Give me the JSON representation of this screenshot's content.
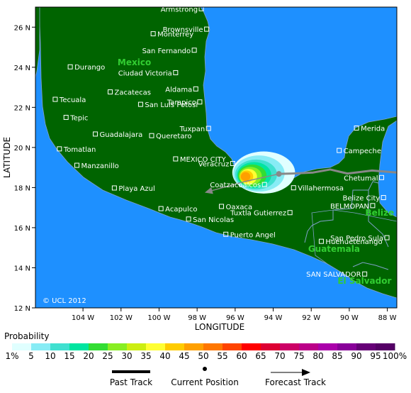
{
  "colors": {
    "ocean": "#1e90ff",
    "land": "#006400",
    "border": "#7fa0c8",
    "frame": "#000000",
    "track": "#888888",
    "country_label": "#32cd32",
    "city_marker": "#ffffff"
  },
  "map": {
    "lon_range": [
      -106.5,
      -87.5
    ],
    "lat_range": [
      12,
      27
    ],
    "x_label": "LONGITUDE",
    "y_label": "LATITUDE",
    "credit": "© UCL 2012",
    "lon_ticks": [
      {
        "value": -104,
        "label": "104 W"
      },
      {
        "value": -102,
        "label": "102 W"
      },
      {
        "value": -100,
        "label": "100 W"
      },
      {
        "value": -98,
        "label": "98 W"
      },
      {
        "value": -96,
        "label": "96 W"
      },
      {
        "value": -94,
        "label": "94 W"
      },
      {
        "value": -92,
        "label": "92 W"
      },
      {
        "value": -90,
        "label": "90 W"
      },
      {
        "value": -88,
        "label": "88 W"
      }
    ],
    "lat_ticks": [
      {
        "value": 26,
        "label": "26 N"
      },
      {
        "value": 24,
        "label": "24 N"
      },
      {
        "value": 22,
        "label": "22 N"
      },
      {
        "value": 20,
        "label": "20 N"
      },
      {
        "value": 18,
        "label": "18 N"
      },
      {
        "value": 16,
        "label": "16 N"
      },
      {
        "value": 14,
        "label": "14 N"
      },
      {
        "value": 12,
        "label": "12 N"
      }
    ],
    "countries": [
      {
        "name": "Mexico",
        "lon": -101.3,
        "lat": 24.1
      },
      {
        "name": "Guatemala",
        "lon": -90.8,
        "lat": 14.8
      },
      {
        "name": "Belize",
        "lon": -88.4,
        "lat": 16.6
      },
      {
        "name": "El Salvador",
        "lon": -89.2,
        "lat": 13.2
      }
    ],
    "cities": [
      {
        "name": "Armstrong",
        "lon": -97.78,
        "lat": 26.92,
        "label_side": "left"
      },
      {
        "name": "Brownsville",
        "lon": -97.5,
        "lat": 25.9,
        "label_side": "left"
      },
      {
        "name": "Monterrey",
        "lon": -100.31,
        "lat": 25.67,
        "label_side": "right"
      },
      {
        "name": "San Fernando",
        "lon": -98.15,
        "lat": 24.85,
        "label_side": "left"
      },
      {
        "name": "Durango",
        "lon": -104.67,
        "lat": 24.02,
        "label_side": "right"
      },
      {
        "name": "Ciudad Victoria",
        "lon": -99.13,
        "lat": 23.73,
        "label_side": "left"
      },
      {
        "name": "Zacatecas",
        "lon": -102.57,
        "lat": 22.77,
        "label_side": "right"
      },
      {
        "name": "Aldama",
        "lon": -98.07,
        "lat": 22.92,
        "label_side": "left"
      },
      {
        "name": "Tecuala",
        "lon": -105.46,
        "lat": 22.4,
        "label_side": "right"
      },
      {
        "name": "Tampico",
        "lon": -97.86,
        "lat": 22.27,
        "label_side": "left"
      },
      {
        "name": "San Luis Potosi",
        "lon": -100.97,
        "lat": 22.15,
        "label_side": "right"
      },
      {
        "name": "Tepic",
        "lon": -104.89,
        "lat": 21.5,
        "label_side": "right"
      },
      {
        "name": "Guadalajara",
        "lon": -103.35,
        "lat": 20.67,
        "label_side": "right"
      },
      {
        "name": "Queretaro",
        "lon": -100.39,
        "lat": 20.59,
        "label_side": "right"
      },
      {
        "name": "Tuxpan",
        "lon": -97.4,
        "lat": 20.95,
        "label_side": "left"
      },
      {
        "name": "Tomatlan",
        "lon": -105.24,
        "lat": 19.93,
        "label_side": "right"
      },
      {
        "name": "MEXICO CITY",
        "lon": -99.13,
        "lat": 19.43,
        "label_side": "right"
      },
      {
        "name": "Manzanillo",
        "lon": -104.32,
        "lat": 19.11,
        "label_side": "right"
      },
      {
        "name": "Veracruz",
        "lon": -96.13,
        "lat": 19.2,
        "label_side": "left"
      },
      {
        "name": "Coatzacoalcos",
        "lon": -94.46,
        "lat": 18.15,
        "label_side": "left"
      },
      {
        "name": "Villahermosa",
        "lon": -92.93,
        "lat": 17.99,
        "label_side": "right"
      },
      {
        "name": "Playa Azul",
        "lon": -102.35,
        "lat": 17.98,
        "label_side": "right"
      },
      {
        "name": "Acapulco",
        "lon": -99.9,
        "lat": 16.95,
        "label_side": "right"
      },
      {
        "name": "Oaxaca",
        "lon": -96.72,
        "lat": 17.06,
        "label_side": "right"
      },
      {
        "name": "Tuxtla Gutierrez",
        "lon": -93.12,
        "lat": 16.75,
        "label_side": "left"
      },
      {
        "name": "San Nicolas",
        "lon": -98.45,
        "lat": 16.43,
        "label_side": "right"
      },
      {
        "name": "Puerto Angel",
        "lon": -96.49,
        "lat": 15.67,
        "label_side": "right"
      },
      {
        "name": "Merida",
        "lon": -89.62,
        "lat": 20.97,
        "label_side": "right"
      },
      {
        "name": "Campeche",
        "lon": -90.53,
        "lat": 19.85,
        "label_side": "right"
      },
      {
        "name": "Chetumal",
        "lon": -88.3,
        "lat": 18.5,
        "label_side": "left"
      },
      {
        "name": "Belize City",
        "lon": -88.2,
        "lat": 17.5,
        "label_side": "left"
      },
      {
        "name": "BELMOPAN",
        "lon": -88.77,
        "lat": 17.1,
        "label_side": "left"
      },
      {
        "name": "San Pedro Sula",
        "lon": -88.02,
        "lat": 15.5,
        "label_side": "left"
      },
      {
        "name": "Huehuetenango",
        "lon": -91.47,
        "lat": 15.32,
        "label_side": "right"
      },
      {
        "name": "SAN SALVADOR",
        "lon": -89.19,
        "lat": 13.69,
        "label_side": "left"
      }
    ],
    "probability_zones": [
      {
        "level": 1,
        "color": "#e0ffff",
        "lon": -94.5,
        "lat": 18.75,
        "rx_deg": 1.65,
        "ry_deg": 1.05
      },
      {
        "level": 5,
        "color": "#87ecf5",
        "lon": -94.75,
        "lat": 18.7,
        "rx_deg": 1.35,
        "ry_deg": 0.9
      },
      {
        "level": 10,
        "color": "#40e0d0",
        "lon": -94.9,
        "lat": 18.65,
        "rx_deg": 1.1,
        "ry_deg": 0.75
      },
      {
        "level": 15,
        "color": "#00e5a0",
        "lon": -95.0,
        "lat": 18.62,
        "rx_deg": 0.9,
        "ry_deg": 0.65
      },
      {
        "level": 20,
        "color": "#33dd33",
        "lon": -95.1,
        "lat": 18.6,
        "rx_deg": 0.75,
        "ry_deg": 0.55
      },
      {
        "level": 25,
        "color": "#88ee22",
        "lon": -95.2,
        "lat": 18.58,
        "rx_deg": 0.6,
        "ry_deg": 0.45
      },
      {
        "level": 35,
        "color": "#ffff33",
        "lon": -95.3,
        "lat": 18.55,
        "rx_deg": 0.45,
        "ry_deg": 0.38
      },
      {
        "level": 40,
        "color": "#ffcc00",
        "lon": -95.4,
        "lat": 18.55,
        "rx_deg": 0.35,
        "ry_deg": 0.3
      },
      {
        "level": 45,
        "color": "#ffa000",
        "lon": -95.45,
        "lat": 18.55,
        "rx_deg": 0.25,
        "ry_deg": 0.22
      }
    ],
    "past_track": [
      {
        "lon": -87.5,
        "lat": 18.75
      },
      {
        "lon": -88.8,
        "lat": 18.85
      },
      {
        "lon": -90.1,
        "lat": 18.7
      },
      {
        "lon": -91.0,
        "lat": 18.9
      },
      {
        "lon": -91.9,
        "lat": 18.75
      },
      {
        "lon": -93.0,
        "lat": 18.7
      },
      {
        "lon": -93.7,
        "lat": 18.68
      }
    ],
    "current_position": {
      "lon": -93.7,
      "lat": 18.68
    },
    "forecast_track": [
      {
        "lon": -93.7,
        "lat": 18.68
      },
      {
        "lon": -95.5,
        "lat": 18.3
      },
      {
        "lon": -97.6,
        "lat": 17.75
      }
    ]
  },
  "legend": {
    "title": "Probability",
    "levels": [
      {
        "label": "1%",
        "color": "#e0ffff"
      },
      {
        "label": "5",
        "color": "#87ecf5"
      },
      {
        "label": "10",
        "color": "#40e0d0"
      },
      {
        "label": "15",
        "color": "#00e5a0"
      },
      {
        "label": "20",
        "color": "#33dd33"
      },
      {
        "label": "25",
        "color": "#88ee22"
      },
      {
        "label": "30",
        "color": "#ccee11"
      },
      {
        "label": "35",
        "color": "#ffff33"
      },
      {
        "label": "40",
        "color": "#ffcc00"
      },
      {
        "label": "45",
        "color": "#ffa000"
      },
      {
        "label": "50",
        "color": "#ff7700"
      },
      {
        "label": "55",
        "color": "#ff4400"
      },
      {
        "label": "60",
        "color": "#ff0000"
      },
      {
        "label": "65",
        "color": "#dd0033"
      },
      {
        "label": "70",
        "color": "#cc0066"
      },
      {
        "label": "75",
        "color": "#bb0088"
      },
      {
        "label": "80",
        "color": "#aa00aa"
      },
      {
        "label": "85",
        "color": "#880099"
      },
      {
        "label": "90",
        "color": "#660077"
      },
      {
        "label": "95",
        "color": "#550066"
      },
      {
        "label": "100%",
        "color": "#330044"
      }
    ],
    "keys": {
      "past_track": "Past Track",
      "current_position": "Current Position",
      "forecast_track": "Forecast Track"
    }
  }
}
